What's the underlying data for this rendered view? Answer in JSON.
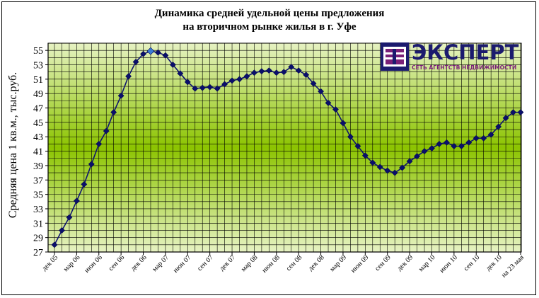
{
  "logo": {
    "name": "ЭКСПЕРТ",
    "tagline": "СЕТЬ АГЕНТСТВ НЕДВИЖИМОСТИ"
  },
  "colors": {
    "line": "#0f1470",
    "marker": "#0a0f6b",
    "highlight_marker": "#3a7bd5",
    "grid": "#000000",
    "plot_bg_edge": "#e6f2c2",
    "plot_bg_center": "#8cc400",
    "logo_dark": "#1b1a6e",
    "logo_accent": "#7a1f78"
  },
  "chart_data": {
    "type": "line",
    "title": "Динамика средней удельной цены предложения на вторичном рынке жилья в г. Уфе",
    "title_lines": [
      "Динамика средней удельной цены предложения",
      "на вторичном рынке жилья в г. Уфе"
    ],
    "ylabel": "Средняя цена 1 кв.м., тыс.руб.",
    "xlabel": "",
    "ylim": [
      27,
      56
    ],
    "yticks": [
      27,
      29,
      31,
      33,
      35,
      37,
      39,
      41,
      43,
      45,
      47,
      49,
      51,
      53,
      55
    ],
    "grid": true,
    "legend": "none",
    "x_tick_labels": [
      "дек 05",
      "мар 06",
      "июн 06",
      "сен 06",
      "дек 06",
      "мар 07",
      "июн 07",
      "сен 07",
      "дек 07",
      "мар 08",
      "июн 08",
      "сен 08",
      "дек 08",
      "мар 09",
      "июн 09",
      "сен 09",
      "дек 09",
      "мар 10",
      "июн 10",
      "сен 10",
      "дек 10",
      "на 23 мая"
    ],
    "series": [
      {
        "values": [
          28.0,
          30.0,
          31.8,
          34.1,
          36.4,
          39.2,
          42.0,
          43.8,
          46.4,
          48.7,
          51.4,
          53.4,
          54.5,
          54.9,
          54.7,
          54.3,
          53.0,
          51.8,
          50.6,
          49.7,
          49.8,
          49.9,
          49.7,
          50.3,
          50.8,
          51.0,
          51.4,
          51.9,
          52.1,
          52.2,
          51.9,
          52.0,
          52.7,
          52.2,
          51.6,
          50.4,
          49.3,
          47.7,
          46.8,
          44.9,
          43.0,
          41.7,
          40.4,
          39.4,
          38.8,
          38.3,
          38.0,
          38.7,
          39.6,
          40.3,
          41.0,
          41.4,
          42.0,
          42.2,
          41.7,
          41.7,
          42.2,
          42.8,
          42.8,
          43.3,
          44.4,
          45.6,
          46.4,
          46.4
        ],
        "highlight_index": 13
      }
    ]
  }
}
